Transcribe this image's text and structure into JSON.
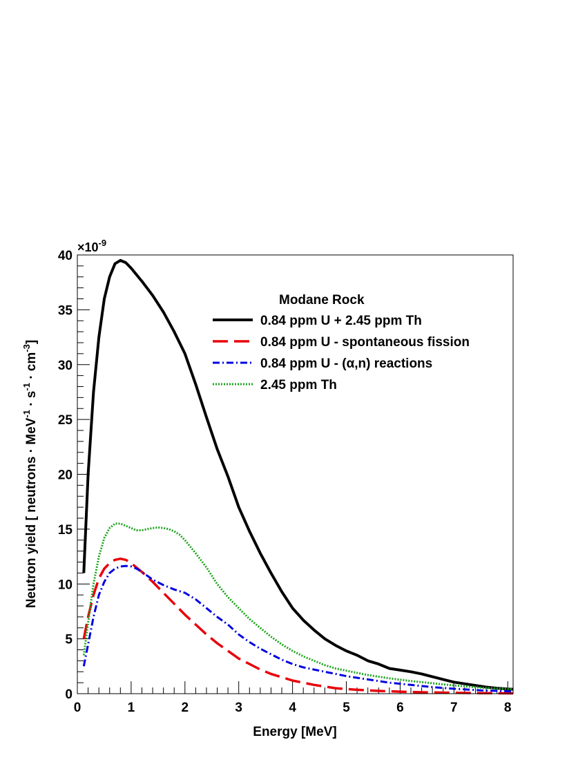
{
  "chart_data": {
    "type": "line",
    "title": "",
    "xlabel": "Energy [MeV]",
    "ylabel_parts": [
      "Neutron yield  [ neutrons · MeV",
      "-1",
      " · s",
      "-1",
      " · cm",
      "-3",
      "]"
    ],
    "y_exponent": {
      "base": "×10",
      "power": "-9"
    },
    "xlim": [
      0,
      8.1
    ],
    "ylim": [
      0,
      40
    ],
    "x_ticks": [
      0,
      1,
      2,
      3,
      4,
      5,
      6,
      7,
      8
    ],
    "y_ticks": [
      0,
      5,
      10,
      15,
      20,
      25,
      30,
      35,
      40
    ],
    "x_tick_labels": [
      "0",
      "1",
      "2",
      "3",
      "4",
      "5",
      "6",
      "7",
      "8"
    ],
    "y_tick_labels": [
      "0",
      "5",
      "10",
      "15",
      "20",
      "25",
      "30",
      "35",
      "40"
    ],
    "legend": {
      "title": "Modane Rock",
      "placement": "top-right"
    },
    "grid": false,
    "series": [
      {
        "name": "0.84 ppm U + 2.45 ppm Th",
        "color": "#000000",
        "style": "solid",
        "points": [
          [
            0.12,
            11.0
          ],
          [
            0.2,
            20.0
          ],
          [
            0.3,
            27.5
          ],
          [
            0.4,
            32.5
          ],
          [
            0.5,
            36.0
          ],
          [
            0.6,
            38.0
          ],
          [
            0.7,
            39.2
          ],
          [
            0.8,
            39.5
          ],
          [
            0.9,
            39.3
          ],
          [
            1.0,
            38.8
          ],
          [
            1.2,
            37.6
          ],
          [
            1.4,
            36.3
          ],
          [
            1.6,
            34.8
          ],
          [
            1.8,
            33.0
          ],
          [
            2.0,
            31.0
          ],
          [
            2.2,
            28.2
          ],
          [
            2.4,
            25.2
          ],
          [
            2.6,
            22.3
          ],
          [
            2.8,
            19.8
          ],
          [
            3.0,
            17.0
          ],
          [
            3.2,
            14.8
          ],
          [
            3.4,
            12.8
          ],
          [
            3.6,
            11.0
          ],
          [
            3.8,
            9.3
          ],
          [
            4.0,
            7.8
          ],
          [
            4.2,
            6.7
          ],
          [
            4.4,
            5.8
          ],
          [
            4.6,
            5.0
          ],
          [
            4.8,
            4.4
          ],
          [
            5.0,
            3.9
          ],
          [
            5.2,
            3.5
          ],
          [
            5.4,
            3.0
          ],
          [
            5.6,
            2.7
          ],
          [
            5.8,
            2.3
          ],
          [
            6.0,
            2.15
          ],
          [
            6.2,
            2.0
          ],
          [
            6.4,
            1.8
          ],
          [
            6.6,
            1.55
          ],
          [
            6.8,
            1.3
          ],
          [
            7.0,
            1.05
          ],
          [
            7.2,
            0.9
          ],
          [
            7.4,
            0.75
          ],
          [
            7.6,
            0.6
          ],
          [
            7.8,
            0.5
          ],
          [
            8.0,
            0.42
          ],
          [
            8.1,
            0.4
          ]
        ]
      },
      {
        "name": "0.84 ppm U - spontaneous fission",
        "color": "#e8000b",
        "style": "dashed",
        "points": [
          [
            0.12,
            5.0
          ],
          [
            0.2,
            7.0
          ],
          [
            0.3,
            9.0
          ],
          [
            0.4,
            10.5
          ],
          [
            0.5,
            11.4
          ],
          [
            0.6,
            11.9
          ],
          [
            0.7,
            12.2
          ],
          [
            0.8,
            12.3
          ],
          [
            0.9,
            12.2
          ],
          [
            1.0,
            11.9
          ],
          [
            1.2,
            11.1
          ],
          [
            1.4,
            10.2
          ],
          [
            1.6,
            9.2
          ],
          [
            1.8,
            8.2
          ],
          [
            2.0,
            7.2
          ],
          [
            2.2,
            6.3
          ],
          [
            2.4,
            5.4
          ],
          [
            2.6,
            4.6
          ],
          [
            2.8,
            3.9
          ],
          [
            3.0,
            3.2
          ],
          [
            3.2,
            2.7
          ],
          [
            3.4,
            2.2
          ],
          [
            3.6,
            1.8
          ],
          [
            3.8,
            1.5
          ],
          [
            4.0,
            1.2
          ],
          [
            4.4,
            0.8
          ],
          [
            4.8,
            0.5
          ],
          [
            5.2,
            0.35
          ],
          [
            5.6,
            0.25
          ],
          [
            6.0,
            0.18
          ],
          [
            6.5,
            0.12
          ],
          [
            7.0,
            0.08
          ],
          [
            7.5,
            0.05
          ],
          [
            8.1,
            0.03
          ]
        ]
      },
      {
        "name": "0.84 ppm U - (α,n) reactions",
        "color": "#0000e0",
        "style": "dashdot",
        "points": [
          [
            0.12,
            2.5
          ],
          [
            0.2,
            4.5
          ],
          [
            0.3,
            7.0
          ],
          [
            0.4,
            9.0
          ],
          [
            0.5,
            10.2
          ],
          [
            0.6,
            11.0
          ],
          [
            0.7,
            11.4
          ],
          [
            0.8,
            11.6
          ],
          [
            0.9,
            11.65
          ],
          [
            1.0,
            11.6
          ],
          [
            1.1,
            11.4
          ],
          [
            1.2,
            11.1
          ],
          [
            1.4,
            10.4
          ],
          [
            1.6,
            9.9
          ],
          [
            1.8,
            9.5
          ],
          [
            2.0,
            9.2
          ],
          [
            2.2,
            8.6
          ],
          [
            2.4,
            7.8
          ],
          [
            2.6,
            7.0
          ],
          [
            2.8,
            6.3
          ],
          [
            3.0,
            5.4
          ],
          [
            3.2,
            4.7
          ],
          [
            3.4,
            4.1
          ],
          [
            3.6,
            3.6
          ],
          [
            3.8,
            3.1
          ],
          [
            4.0,
            2.7
          ],
          [
            4.2,
            2.4
          ],
          [
            4.4,
            2.2
          ],
          [
            4.6,
            2.0
          ],
          [
            4.8,
            1.8
          ],
          [
            5.0,
            1.6
          ],
          [
            5.4,
            1.3
          ],
          [
            5.8,
            1.0
          ],
          [
            6.2,
            0.8
          ],
          [
            6.6,
            0.6
          ],
          [
            7.0,
            0.45
          ],
          [
            7.5,
            0.3
          ],
          [
            8.1,
            0.2
          ]
        ]
      },
      {
        "name": "2.45 ppm Th",
        "color": "#1ca41c",
        "style": "dotted",
        "points": [
          [
            0.12,
            3.5
          ],
          [
            0.2,
            6.5
          ],
          [
            0.3,
            10.0
          ],
          [
            0.4,
            12.5
          ],
          [
            0.5,
            14.2
          ],
          [
            0.6,
            15.1
          ],
          [
            0.7,
            15.5
          ],
          [
            0.8,
            15.5
          ],
          [
            0.9,
            15.3
          ],
          [
            1.0,
            15.1
          ],
          [
            1.1,
            14.9
          ],
          [
            1.2,
            14.9
          ],
          [
            1.3,
            15.0
          ],
          [
            1.4,
            15.1
          ],
          [
            1.5,
            15.15
          ],
          [
            1.6,
            15.1
          ],
          [
            1.7,
            15.0
          ],
          [
            1.8,
            14.8
          ],
          [
            1.9,
            14.5
          ],
          [
            2.0,
            14.0
          ],
          [
            2.2,
            12.8
          ],
          [
            2.4,
            11.5
          ],
          [
            2.6,
            10.0
          ],
          [
            2.8,
            8.8
          ],
          [
            3.0,
            7.8
          ],
          [
            3.2,
            6.8
          ],
          [
            3.4,
            6.0
          ],
          [
            3.6,
            5.2
          ],
          [
            3.8,
            4.5
          ],
          [
            4.0,
            3.9
          ],
          [
            4.2,
            3.4
          ],
          [
            4.4,
            3.0
          ],
          [
            4.6,
            2.6
          ],
          [
            4.8,
            2.3
          ],
          [
            5.0,
            2.1
          ],
          [
            5.4,
            1.7
          ],
          [
            5.8,
            1.4
          ],
          [
            6.2,
            1.15
          ],
          [
            6.6,
            0.95
          ],
          [
            7.0,
            0.75
          ],
          [
            7.5,
            0.55
          ],
          [
            8.1,
            0.4
          ]
        ]
      }
    ]
  }
}
